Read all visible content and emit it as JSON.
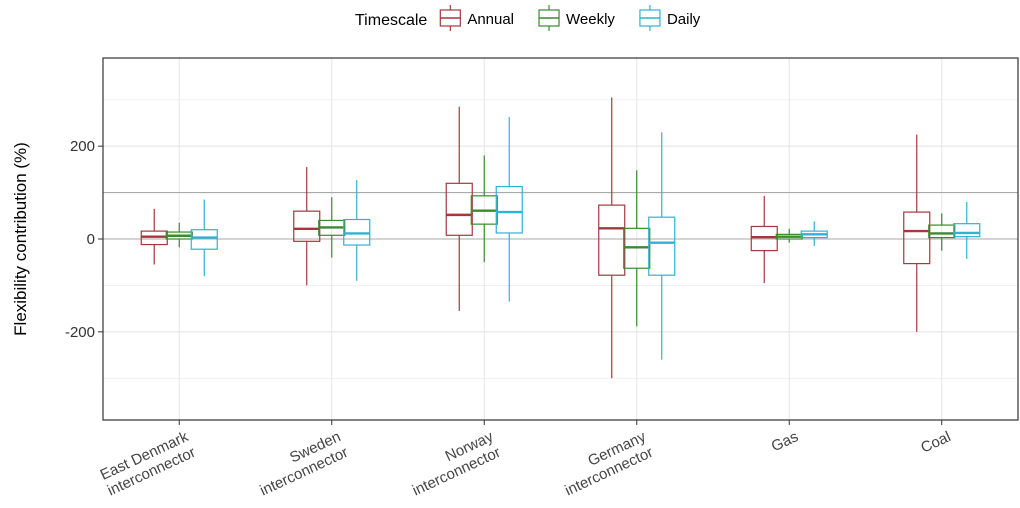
{
  "chart_data": {
    "type": "boxplot",
    "ylabel": "Flexibility contribution (%)",
    "xlabel": "",
    "ylim": [
      -390,
      390
    ],
    "yticks": [
      -200,
      0,
      200
    ],
    "reference_lines": [
      0,
      100
    ],
    "grid": true,
    "legend": {
      "title": "Timescale",
      "position": "top"
    },
    "categories": [
      "East Denmark\ninterconnector",
      "Sweden\ninterconnector",
      "Norway\ninterconnector",
      "Germany\ninterconnector",
      "Gas",
      "Coal"
    ],
    "series": [
      {
        "name": "Annual",
        "color": "#A6373C",
        "boxes": [
          {
            "min": -55,
            "q1": -12,
            "median": 5,
            "q3": 17,
            "max": 65
          },
          {
            "min": -100,
            "q1": -5,
            "median": 22,
            "q3": 60,
            "max": 155
          },
          {
            "min": -155,
            "q1": 8,
            "median": 52,
            "q3": 120,
            "max": 285
          },
          {
            "min": -300,
            "q1": -78,
            "median": 23,
            "q3": 73,
            "max": 305
          },
          {
            "min": -95,
            "q1": -25,
            "median": 4,
            "q3": 27,
            "max": 93
          },
          {
            "min": -200,
            "q1": -53,
            "median": 17,
            "q3": 58,
            "max": 225
          }
        ]
      },
      {
        "name": "Weekly",
        "color": "#3A8A2E",
        "boxes": [
          {
            "min": -18,
            "q1": 0,
            "median": 7,
            "q3": 15,
            "max": 35
          },
          {
            "min": -40,
            "q1": 8,
            "median": 25,
            "q3": 40,
            "max": 90
          },
          {
            "min": -50,
            "q1": 32,
            "median": 61,
            "q3": 93,
            "max": 180
          },
          {
            "min": -188,
            "q1": -63,
            "median": -18,
            "q3": 23,
            "max": 148
          },
          {
            "min": -8,
            "q1": 0,
            "median": 5,
            "q3": 10,
            "max": 22
          },
          {
            "min": -25,
            "q1": 3,
            "median": 12,
            "q3": 30,
            "max": 55
          }
        ]
      },
      {
        "name": "Daily",
        "color": "#2DB3D4",
        "boxes": [
          {
            "min": -80,
            "q1": -22,
            "median": 3,
            "q3": 20,
            "max": 85
          },
          {
            "min": -90,
            "q1": -13,
            "median": 12,
            "q3": 42,
            "max": 127
          },
          {
            "min": -135,
            "q1": 13,
            "median": 58,
            "q3": 113,
            "max": 263
          },
          {
            "min": -260,
            "q1": -78,
            "median": -8,
            "q3": 47,
            "max": 230
          },
          {
            "min": -15,
            "q1": 3,
            "median": 10,
            "q3": 17,
            "max": 38
          },
          {
            "min": -43,
            "q1": 5,
            "median": 13,
            "q3": 33,
            "max": 80
          }
        ]
      }
    ]
  }
}
